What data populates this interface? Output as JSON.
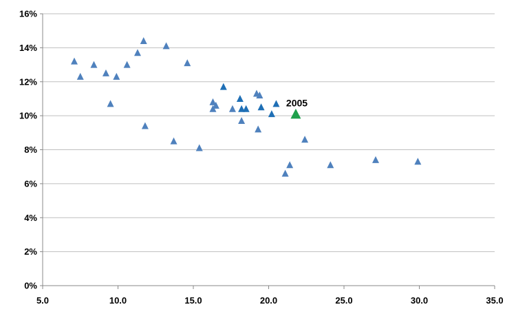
{
  "chart_data": {
    "type": "scatter",
    "title": "",
    "xlabel": "",
    "ylabel": "",
    "xlim": [
      5,
      35
    ],
    "ylim": [
      0,
      16
    ],
    "x_ticks": [
      5,
      10,
      15,
      20,
      25,
      30,
      35
    ],
    "x_tick_labels": [
      "5.0",
      "10.0",
      "15.0",
      "20.0",
      "25.0",
      "30.0",
      "35.0"
    ],
    "y_ticks": [
      0,
      2,
      4,
      6,
      8,
      10,
      12,
      14,
      16
    ],
    "y_tick_labels": [
      "0%",
      "2%",
      "4%",
      "6%",
      "8%",
      "10%",
      "12%",
      "14%",
      "16%"
    ],
    "grid": "horizontal",
    "legend": "none",
    "marker": "triangle",
    "colors": {
      "light_points": "#4f81bd",
      "dark_points": "#1f6fb5",
      "highlight": "#1fa04c",
      "grid": "#bfbfbf",
      "axis": "#888888"
    },
    "series": [
      {
        "style": "light",
        "points": [
          {
            "x": 7.1,
            "y": 13.2
          },
          {
            "x": 7.5,
            "y": 12.3
          },
          {
            "x": 8.4,
            "y": 13.0
          },
          {
            "x": 9.2,
            "y": 12.5
          },
          {
            "x": 9.5,
            "y": 10.7
          },
          {
            "x": 9.9,
            "y": 12.3
          },
          {
            "x": 10.6,
            "y": 13.0
          },
          {
            "x": 11.3,
            "y": 13.7
          },
          {
            "x": 11.7,
            "y": 14.4
          },
          {
            "x": 11.8,
            "y": 9.4
          },
          {
            "x": 13.2,
            "y": 14.1
          },
          {
            "x": 13.7,
            "y": 8.5
          },
          {
            "x": 14.6,
            "y": 13.1
          },
          {
            "x": 15.4,
            "y": 8.1
          },
          {
            "x": 16.3,
            "y": 10.8
          },
          {
            "x": 16.3,
            "y": 10.4
          },
          {
            "x": 16.5,
            "y": 10.6
          },
          {
            "x": 17.6,
            "y": 10.4
          },
          {
            "x": 18.2,
            "y": 9.7
          },
          {
            "x": 19.2,
            "y": 11.3
          },
          {
            "x": 19.3,
            "y": 9.2
          },
          {
            "x": 19.4,
            "y": 11.2
          },
          {
            "x": 21.1,
            "y": 6.6
          },
          {
            "x": 21.4,
            "y": 7.1
          },
          {
            "x": 22.4,
            "y": 8.6
          },
          {
            "x": 24.1,
            "y": 7.1
          },
          {
            "x": 27.1,
            "y": 7.4
          },
          {
            "x": 29.9,
            "y": 7.3
          }
        ]
      },
      {
        "style": "dark",
        "points": [
          {
            "x": 17.0,
            "y": 11.7
          },
          {
            "x": 18.1,
            "y": 11.0
          },
          {
            "x": 18.2,
            "y": 10.4
          },
          {
            "x": 18.5,
            "y": 10.4
          },
          {
            "x": 19.5,
            "y": 10.5
          },
          {
            "x": 20.2,
            "y": 10.1
          },
          {
            "x": 20.5,
            "y": 10.7
          }
        ]
      },
      {
        "style": "highlight",
        "points": [
          {
            "x": 21.8,
            "y": 10.1
          }
        ]
      }
    ],
    "annotations": [
      {
        "text": "2005",
        "x": 21.8,
        "y": 10.1
      }
    ]
  }
}
